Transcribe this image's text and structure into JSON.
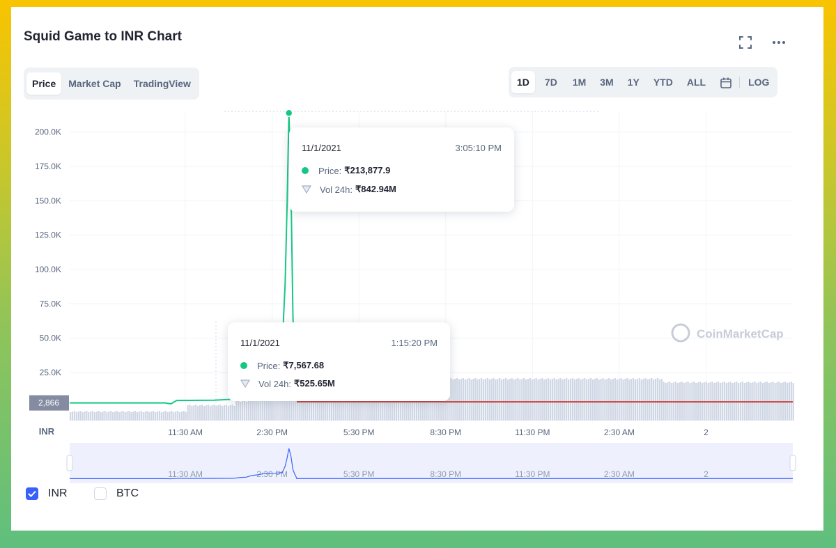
{
  "title": "Squid Game to INR Chart",
  "icons": {
    "fullscreen": "fullscreen-icon",
    "more": "more-dots-icon",
    "calendar": "calendar-icon"
  },
  "chart_tabs": [
    {
      "label": "Price",
      "active": true
    },
    {
      "label": "Market Cap",
      "active": false
    },
    {
      "label": "TradingView",
      "active": false
    }
  ],
  "ranges": [
    {
      "label": "1D",
      "active": true
    },
    {
      "label": "7D",
      "active": false
    },
    {
      "label": "1M",
      "active": false
    },
    {
      "label": "3M",
      "active": false
    },
    {
      "label": "1Y",
      "active": false
    },
    {
      "label": "YTD",
      "active": false
    },
    {
      "label": "ALL",
      "active": false
    }
  ],
  "log_label": "LOG",
  "currency_label": "INR",
  "watermark": "CoinMarketCap",
  "current_price_label": "2,866",
  "colors": {
    "up": "#16c784",
    "down": "#c9403b",
    "volume": "#cfd6e4",
    "accent": "#3861fb",
    "navigator": "#eef1fd"
  },
  "tooltips": [
    {
      "date": "11/1/2021",
      "time": "3:05:10 PM",
      "price_label": "Price:",
      "price": "₹213,877.9",
      "vol_label": "Vol 24h:",
      "vol": "₹842.94M"
    },
    {
      "date": "11/1/2021",
      "time": "1:15:20 PM",
      "price_label": "Price:",
      "price": "₹7,567.68",
      "vol_label": "Vol 24h:",
      "vol": "₹525.65M"
    }
  ],
  "legend": [
    {
      "label": "INR",
      "checked": true
    },
    {
      "label": "BTC",
      "checked": false
    }
  ],
  "chart_data": {
    "type": "line",
    "title": "Squid Game to INR Chart",
    "ylabel": "INR",
    "ylim": [
      -10000,
      215000
    ],
    "yticks": [
      25000,
      50000,
      75000,
      100000,
      125000,
      150000,
      175000,
      200000
    ],
    "ytick_labels": [
      "25.0K",
      "50.0K",
      "75.0K",
      "100.0K",
      "125.0K",
      "150.0K",
      "175.0K",
      "200.0K"
    ],
    "xlim": [
      7.5,
      32.5
    ],
    "xticks": [
      11.5,
      14.5,
      17.5,
      20.5,
      23.5,
      26.5,
      29.5
    ],
    "xtick_labels": [
      "11:30 AM",
      "2:30 PM",
      "5:30 PM",
      "8:30 PM",
      "11:30 PM",
      "2:30 AM",
      "2"
    ],
    "series": [
      {
        "x": [
          7.5,
          10.8,
          11.0,
          11.2,
          12.5,
          13.2,
          13.25,
          13.4,
          13.6,
          13.8,
          14.0,
          14.3,
          14.6,
          14.85,
          14.95,
          15.02,
          15.08,
          15.15,
          15.22,
          15.28,
          15.35
        ],
        "values": [
          2866,
          2866,
          2200,
          4600,
          4800,
          5600,
          7568,
          11000,
          13000,
          25000,
          30000,
          40000,
          41000,
          45000,
          90000,
          150000,
          213878,
          160000,
          65000,
          35000,
          6000
        ]
      },
      {
        "x": [
          15.35,
          20.4,
          20.5,
          32.5
        ],
        "values": [
          3700,
          3700,
          3600,
          3600
        ]
      }
    ],
    "grid": true,
    "current_price": 2866
  }
}
